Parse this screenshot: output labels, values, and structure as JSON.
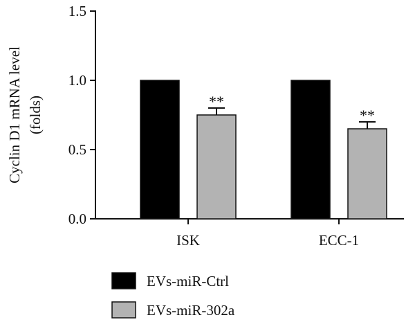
{
  "chart_data": {
    "type": "bar",
    "categories": [
      "ISK",
      "ECC-1"
    ],
    "series": [
      {
        "name": "EVs-miR-Ctrl",
        "values": [
          1.0,
          1.0
        ],
        "errors": [
          0,
          0
        ],
        "color": "#000000"
      },
      {
        "name": "EVs-miR-302a",
        "values": [
          0.75,
          0.65
        ],
        "errors": [
          0.05,
          0.05
        ],
        "color": "#b3b3b3"
      }
    ],
    "annotations": [
      {
        "category": "ISK",
        "series": "EVs-miR-302a",
        "text": "**"
      },
      {
        "category": "ECC-1",
        "series": "EVs-miR-302a",
        "text": "**"
      }
    ],
    "ylabel_lines": [
      "Cyclin D1 mRNA level",
      "(folds)"
    ],
    "xlabel": "",
    "title": "",
    "ylim": [
      0,
      1.5
    ],
    "yticks": [
      0.0,
      0.5,
      1.0,
      1.5
    ],
    "ytick_labels": [
      "0.0",
      "0.5",
      "1.0",
      "1.5"
    ],
    "grid": false,
    "legend_position": "bottom-left"
  }
}
